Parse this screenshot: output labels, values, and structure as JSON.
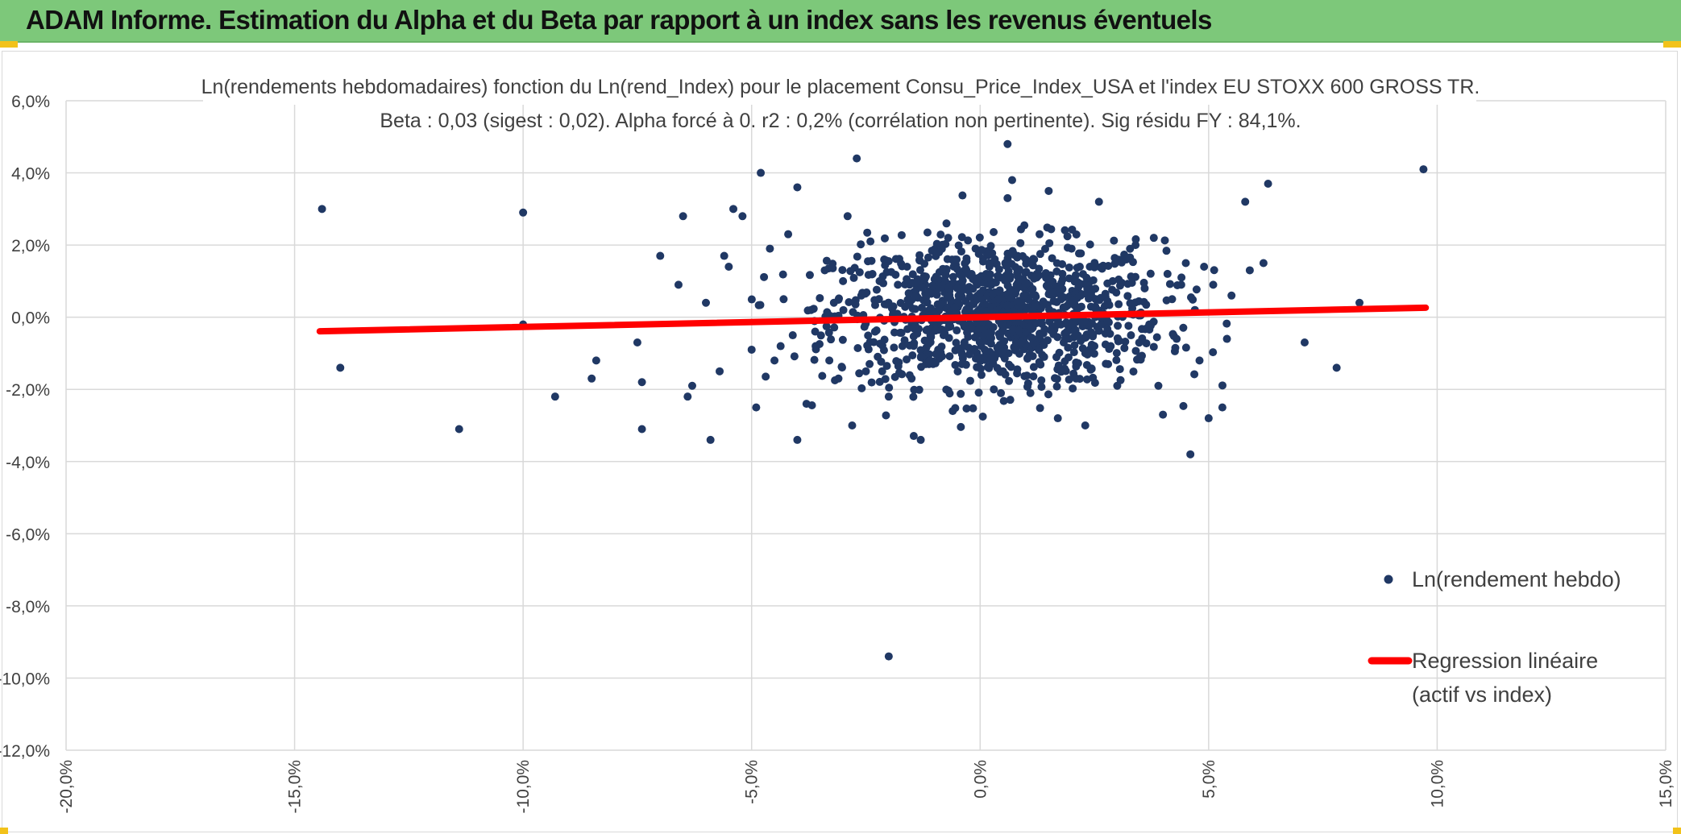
{
  "header": {
    "title": "ADAM Informe. Estimation du Alpha et du Beta par rapport à un index sans les revenus éventuels"
  },
  "colors": {
    "header_bg": "#7dc87a",
    "points": "#203864",
    "regression": "#ff0000",
    "grid": "#d9d9d9"
  },
  "chart_data": {
    "type": "scatter",
    "title": "Ln(rendements hebdomadaires) fonction du Ln(rend_Index) pour le placement Consu_Price_Index_USA et l'index EU STOXX 600 GROSS TR.",
    "subtitle": "Beta : 0,03 (sigest : 0,02). Alpha forcé à 0. r2 : 0,2% (corrélation non pertinente). Sig résidu FY : 84,1%.",
    "xlim": [
      -0.2,
      0.15
    ],
    "ylim": [
      -0.12,
      0.06
    ],
    "x_ticks": [
      "-20,0%",
      "-15,0%",
      "-10,0%",
      "-5,0%",
      "0,0%",
      "5,0%",
      "10,0%",
      "15,0%"
    ],
    "x_tick_values": [
      -0.2,
      -0.15,
      -0.1,
      -0.05,
      0.0,
      0.05,
      0.1,
      0.15
    ],
    "y_ticks": [
      "6,0%",
      "4,0%",
      "2,0%",
      "0,0%",
      "-2,0%",
      "-4,0%",
      "-6,0%",
      "-8,0%",
      "-10,0%",
      "-12,0%"
    ],
    "y_tick_values": [
      0.06,
      0.04,
      0.02,
      0.0,
      -0.02,
      -0.04,
      -0.06,
      -0.08,
      -0.1,
      -0.12
    ],
    "grid": true,
    "legend_position": "right",
    "series": [
      {
        "name": "Ln(rendement hebdo)",
        "kind": "scatter",
        "points": [
          [
            -0.144,
            0.03
          ],
          [
            -0.14,
            -0.014
          ],
          [
            -0.114,
            -0.031
          ],
          [
            -0.1,
            0.029
          ],
          [
            -0.1,
            -0.002
          ],
          [
            -0.093,
            -0.022
          ],
          [
            -0.085,
            -0.017
          ],
          [
            -0.084,
            -0.012
          ],
          [
            -0.075,
            -0.007
          ],
          [
            -0.074,
            -0.018
          ],
          [
            -0.074,
            -0.031
          ],
          [
            -0.07,
            0.017
          ],
          [
            -0.066,
            0.009
          ],
          [
            -0.065,
            0.028
          ],
          [
            -0.064,
            -0.022
          ],
          [
            -0.063,
            -0.019
          ],
          [
            -0.06,
            0.004
          ],
          [
            -0.059,
            -0.034
          ],
          [
            -0.057,
            -0.015
          ],
          [
            -0.056,
            0.017
          ],
          [
            -0.055,
            0.014
          ],
          [
            -0.054,
            0.03
          ],
          [
            -0.052,
            0.028
          ],
          [
            -0.05,
            -0.009
          ],
          [
            -0.049,
            -0.025
          ],
          [
            -0.048,
            0.04
          ],
          [
            -0.046,
            0.019
          ],
          [
            -0.045,
            -0.012
          ],
          [
            -0.043,
            0.005
          ],
          [
            -0.042,
            0.023
          ],
          [
            -0.041,
            -0.005
          ],
          [
            -0.04,
            0.036
          ],
          [
            -0.04,
            -0.034
          ],
          [
            -0.038,
            -0.024
          ],
          [
            -0.037,
            0.002
          ],
          [
            -0.036,
            -0.008
          ],
          [
            -0.034,
            0.013
          ],
          [
            -0.033,
            -0.012
          ],
          [
            -0.032,
            0.004
          ],
          [
            -0.031,
            -0.017
          ],
          [
            -0.03,
            0.01
          ],
          [
            -0.029,
            0.028
          ],
          [
            -0.028,
            -0.03
          ],
          [
            -0.027,
            0.044
          ],
          [
            -0.026,
            0.006
          ],
          [
            -0.025,
            -0.015
          ],
          [
            -0.024,
            0.021
          ],
          [
            -0.023,
            -0.004
          ],
          [
            -0.022,
            0.01
          ],
          [
            -0.021,
            0.016
          ],
          [
            -0.02,
            -0.022
          ],
          [
            -0.019,
            0.003
          ],
          [
            -0.018,
            0.009
          ],
          [
            -0.017,
            -0.008
          ],
          [
            -0.016,
            0.014
          ],
          [
            -0.015,
            -0.017
          ],
          [
            -0.014,
            0.006
          ],
          [
            -0.013,
            -0.034
          ],
          [
            -0.012,
            0.011
          ],
          [
            -0.011,
            -0.012
          ],
          [
            -0.01,
            0.001
          ],
          [
            -0.009,
            0.018
          ],
          [
            -0.008,
            -0.005
          ],
          [
            -0.007,
            0.022
          ],
          [
            -0.006,
            -0.026
          ],
          [
            -0.005,
            0.008
          ],
          [
            -0.004,
            -0.013
          ],
          [
            -0.003,
            0.013
          ],
          [
            -0.002,
            -0.003
          ],
          [
            -0.001,
            0.019
          ],
          [
            0.0,
            0.002
          ],
          [
            0.001,
            -0.009
          ],
          [
            0.002,
            0.015
          ],
          [
            0.003,
            -0.02
          ],
          [
            0.004,
            0.005
          ],
          [
            0.005,
            -0.015
          ],
          [
            0.006,
            0.033
          ],
          [
            0.006,
            0.048
          ],
          [
            0.007,
            0.038
          ],
          [
            0.008,
            0.009
          ],
          [
            0.009,
            -0.007
          ],
          [
            0.01,
            0.016
          ],
          [
            0.011,
            -0.021
          ],
          [
            0.012,
            0.003
          ],
          [
            0.013,
            0.023
          ],
          [
            0.014,
            -0.011
          ],
          [
            0.015,
            0.035
          ],
          [
            0.016,
            0.007
          ],
          [
            0.017,
            -0.028
          ],
          [
            0.018,
            0.012
          ],
          [
            0.019,
            -0.004
          ],
          [
            0.02,
            0.019
          ],
          [
            0.021,
            -0.017
          ],
          [
            0.022,
            0.006
          ],
          [
            0.023,
            -0.03
          ],
          [
            0.024,
            0.014
          ],
          [
            0.025,
            -0.008
          ],
          [
            0.026,
            0.032
          ],
          [
            0.027,
            0.001
          ],
          [
            0.028,
            -0.013
          ],
          [
            0.029,
            0.01
          ],
          [
            0.03,
            -0.019
          ],
          [
            0.032,
            0.016
          ],
          [
            0.033,
            -0.005
          ],
          [
            0.034,
            0.02
          ],
          [
            0.035,
            -0.011
          ],
          [
            0.036,
            0.008
          ],
          [
            0.037,
            -0.002
          ],
          [
            0.038,
            0.022
          ],
          [
            0.039,
            -0.019
          ],
          [
            0.04,
            -0.027
          ],
          [
            0.041,
            0.012
          ],
          [
            0.042,
            0.005
          ],
          [
            0.043,
            -0.006
          ],
          [
            0.044,
            0.009
          ],
          [
            0.045,
            0.015
          ],
          [
            0.046,
            -0.038
          ],
          [
            0.047,
            0.002
          ],
          [
            0.048,
            -0.012
          ],
          [
            0.049,
            0.014
          ],
          [
            0.05,
            -0.028
          ],
          [
            0.051,
            0.009
          ],
          [
            0.053,
            -0.025
          ],
          [
            0.054,
            -0.006
          ],
          [
            0.055,
            0.006
          ],
          [
            0.058,
            0.032
          ],
          [
            0.059,
            0.013
          ],
          [
            0.062,
            0.015
          ],
          [
            0.063,
            0.037
          ],
          [
            0.071,
            -0.007
          ],
          [
            0.078,
            -0.014
          ],
          [
            0.083,
            0.004
          ],
          [
            0.097,
            0.041
          ],
          [
            -0.02,
            -0.094
          ]
        ]
      },
      {
        "name": "Regression linéaire (actif vs index)",
        "kind": "line",
        "x_range": [
          -0.1445,
          0.0975
        ],
        "slope": 0.027,
        "intercept": 0.0
      }
    ],
    "legend": [
      {
        "label": "Ln(rendement hebdo)",
        "marker": "dot"
      },
      {
        "label": "Regression linéaire",
        "label2": "(actif vs index)",
        "marker": "line"
      }
    ]
  }
}
